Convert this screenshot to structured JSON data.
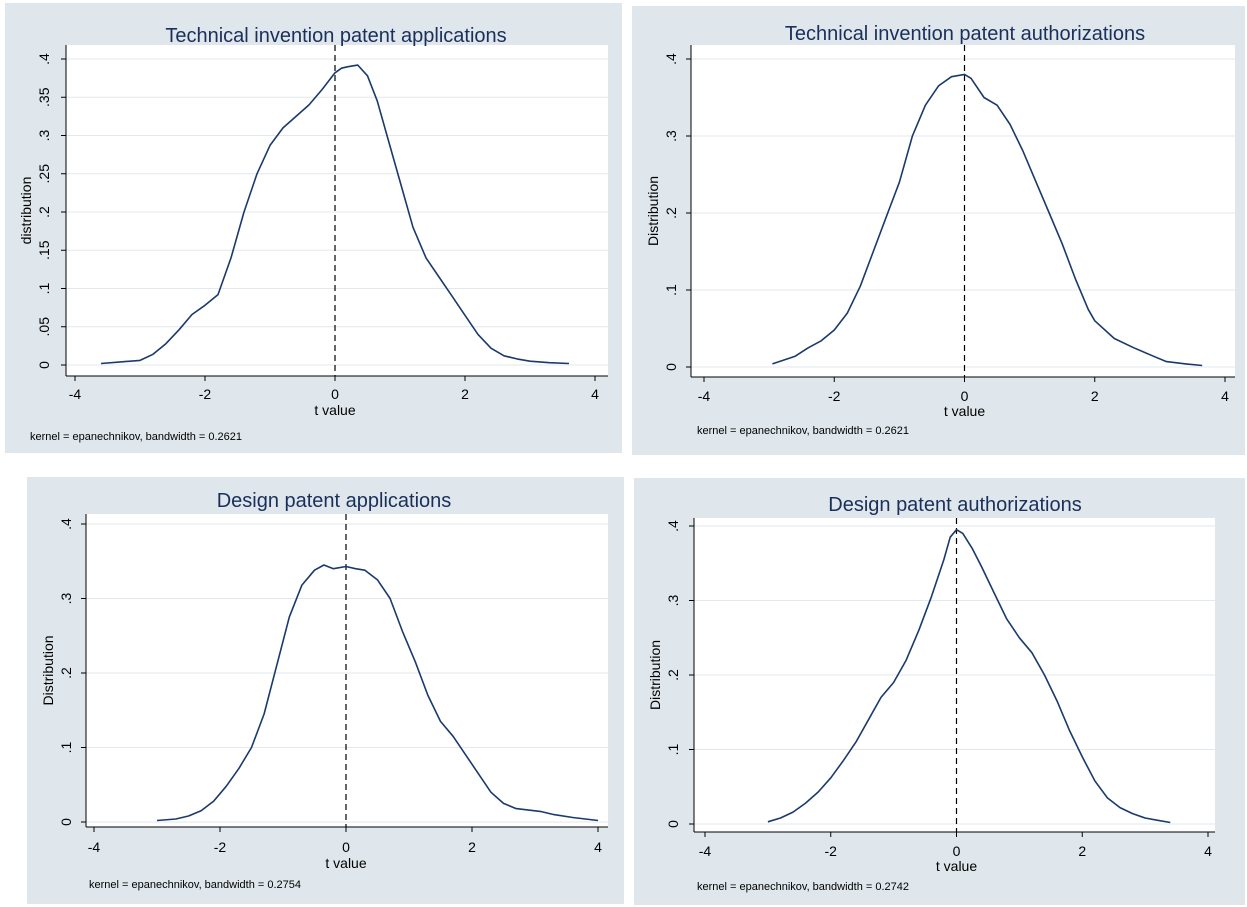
{
  "chart_data": [
    {
      "type": "line",
      "title": "Technical invention patent applications",
      "xlabel": "t value",
      "ylabel": "distribution",
      "note": "kernel = epanechnikov, bandwidth = 0.2621",
      "xlim": [
        -4,
        4
      ],
      "ylim": [
        0,
        0.4
      ],
      "xticks": [
        -4,
        -2,
        0,
        2,
        4
      ],
      "xtick_labels": [
        "-4",
        "-2",
        "0",
        "2",
        "4"
      ],
      "yticks": [
        0,
        0.05,
        0.1,
        0.15,
        0.2,
        0.25,
        0.3,
        0.35,
        0.4
      ],
      "ytick_labels": [
        "0",
        ".05",
        ".1",
        ".15",
        ".2",
        ".25",
        ".3",
        ".35",
        ".4"
      ],
      "grid": true,
      "reference_line_x": 0,
      "line_color": "#1a3a6b",
      "series": [
        {
          "x": [
            -3.6,
            -3.3,
            -3.0,
            -2.8,
            -2.6,
            -2.4,
            -2.2,
            -2.0,
            -1.8,
            -1.6,
            -1.4,
            -1.2,
            -1.0,
            -0.8,
            -0.6,
            -0.4,
            -0.2,
            0.0,
            0.1,
            0.2,
            0.35,
            0.5,
            0.65,
            0.8,
            1.0,
            1.2,
            1.4,
            1.6,
            1.8,
            2.0,
            2.2,
            2.4,
            2.6,
            2.8,
            3.0,
            3.3,
            3.6
          ],
          "y": [
            0.002,
            0.004,
            0.006,
            0.014,
            0.028,
            0.046,
            0.066,
            0.078,
            0.092,
            0.14,
            0.2,
            0.25,
            0.287,
            0.31,
            0.325,
            0.34,
            0.36,
            0.382,
            0.388,
            0.39,
            0.392,
            0.378,
            0.345,
            0.3,
            0.24,
            0.18,
            0.14,
            0.115,
            0.09,
            0.065,
            0.04,
            0.022,
            0.012,
            0.008,
            0.005,
            0.003,
            0.002
          ]
        }
      ]
    },
    {
      "type": "line",
      "title": "Technical invention patent authorizations",
      "xlabel": "t value",
      "ylabel": "Distribution",
      "note": "kernel = epanechnikov, bandwidth = 0.2621",
      "xlim": [
        -4,
        4
      ],
      "ylim": [
        0,
        0.4
      ],
      "xticks": [
        -4,
        -2,
        0,
        2,
        4
      ],
      "xtick_labels": [
        "-4",
        "-2",
        "0",
        "2",
        "4"
      ],
      "yticks": [
        0,
        0.1,
        0.2,
        0.3,
        0.4
      ],
      "ytick_labels": [
        "0",
        ".1",
        ".2",
        ".3",
        ".4"
      ],
      "grid": true,
      "reference_line_x": 0,
      "line_color": "#1a3a6b",
      "series": [
        {
          "x": [
            -2.95,
            -2.6,
            -2.4,
            -2.2,
            -2.0,
            -1.8,
            -1.6,
            -1.4,
            -1.2,
            -1.0,
            -0.8,
            -0.6,
            -0.4,
            -0.2,
            0.0,
            0.1,
            0.3,
            0.5,
            0.7,
            0.9,
            1.1,
            1.3,
            1.5,
            1.7,
            1.9,
            2.0,
            2.3,
            2.6,
            2.9,
            3.1,
            3.4,
            3.65
          ],
          "y": [
            0.004,
            0.014,
            0.025,
            0.034,
            0.048,
            0.07,
            0.105,
            0.15,
            0.195,
            0.24,
            0.3,
            0.34,
            0.365,
            0.377,
            0.38,
            0.375,
            0.35,
            0.34,
            0.315,
            0.28,
            0.24,
            0.2,
            0.16,
            0.115,
            0.075,
            0.06,
            0.037,
            0.025,
            0.014,
            0.007,
            0.004,
            0.002
          ]
        }
      ]
    },
    {
      "type": "line",
      "title": "Design patent applications",
      "xlabel": "t value",
      "ylabel": "Distribution",
      "note": "kernel = epanechnikov, bandwidth = 0.2754",
      "xlim": [
        -4,
        4
      ],
      "ylim": [
        0,
        0.4
      ],
      "xticks": [
        -4,
        -2,
        0,
        2,
        4
      ],
      "xtick_labels": [
        "-4",
        "-2",
        "0",
        "2",
        "4"
      ],
      "yticks": [
        0,
        0.1,
        0.2,
        0.3,
        0.4
      ],
      "ytick_labels": [
        "0",
        ".1",
        ".2",
        ".3",
        ".4"
      ],
      "grid": true,
      "reference_line_x": 0,
      "line_color": "#1a3a6b",
      "series": [
        {
          "x": [
            -3.0,
            -2.7,
            -2.5,
            -2.3,
            -2.1,
            -1.9,
            -1.7,
            -1.5,
            -1.3,
            -1.1,
            -0.9,
            -0.7,
            -0.5,
            -0.35,
            -0.2,
            0.0,
            0.15,
            0.3,
            0.5,
            0.7,
            0.9,
            1.1,
            1.3,
            1.5,
            1.7,
            1.9,
            2.1,
            2.3,
            2.5,
            2.7,
            2.9,
            3.1,
            3.3,
            3.6,
            4.0
          ],
          "y": [
            0.002,
            0.004,
            0.008,
            0.015,
            0.028,
            0.048,
            0.072,
            0.1,
            0.145,
            0.21,
            0.275,
            0.318,
            0.338,
            0.345,
            0.34,
            0.343,
            0.34,
            0.338,
            0.325,
            0.3,
            0.255,
            0.215,
            0.17,
            0.135,
            0.115,
            0.09,
            0.065,
            0.04,
            0.025,
            0.018,
            0.016,
            0.014,
            0.01,
            0.006,
            0.002
          ]
        }
      ]
    },
    {
      "type": "line",
      "title": "Design patent authorizations",
      "xlabel": "t value",
      "ylabel": "Distribution",
      "note": "kernel = epanechnikov, bandwidth = 0.2742",
      "xlim": [
        -4,
        4
      ],
      "ylim": [
        0,
        0.4
      ],
      "xticks": [
        -4,
        -2,
        0,
        2,
        4
      ],
      "xtick_labels": [
        "-4",
        "-2",
        "0",
        "2",
        "4"
      ],
      "yticks": [
        0,
        0.1,
        0.2,
        0.3,
        0.4
      ],
      "ytick_labels": [
        "0",
        ".1",
        ".2",
        ".3",
        ".4"
      ],
      "grid": true,
      "reference_line_x": 0,
      "line_color": "#1a3a6b",
      "series": [
        {
          "x": [
            -3.0,
            -2.8,
            -2.6,
            -2.4,
            -2.2,
            -2.0,
            -1.8,
            -1.6,
            -1.4,
            -1.2,
            -1.0,
            -0.8,
            -0.6,
            -0.4,
            -0.2,
            -0.1,
            0.0,
            0.1,
            0.25,
            0.4,
            0.6,
            0.8,
            1.0,
            1.2,
            1.4,
            1.6,
            1.8,
            2.0,
            2.2,
            2.4,
            2.6,
            2.8,
            3.0,
            3.2,
            3.4
          ],
          "y": [
            0.003,
            0.008,
            0.016,
            0.028,
            0.043,
            0.062,
            0.085,
            0.11,
            0.14,
            0.17,
            0.19,
            0.22,
            0.26,
            0.305,
            0.355,
            0.385,
            0.395,
            0.39,
            0.37,
            0.345,
            0.31,
            0.275,
            0.25,
            0.23,
            0.2,
            0.165,
            0.125,
            0.09,
            0.058,
            0.035,
            0.022,
            0.014,
            0.008,
            0.005,
            0.002
          ]
        }
      ]
    }
  ]
}
